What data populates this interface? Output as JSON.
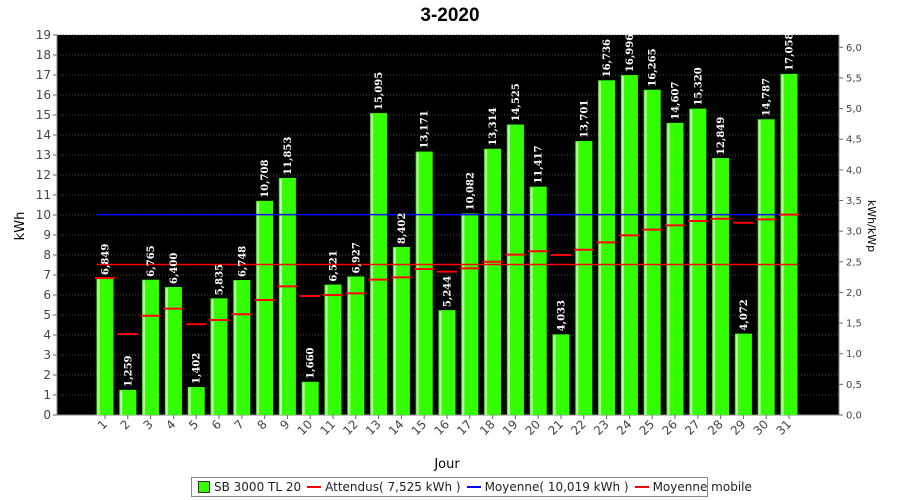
{
  "chart_data": {
    "type": "bar",
    "title": "3-2020",
    "xlabel": "Jour",
    "ylabel": "kWh",
    "y2label": "kWh/kWp",
    "ylim": [
      0,
      19
    ],
    "y2lim": [
      0,
      6.2
    ],
    "yticks": [
      "0",
      "1",
      "2",
      "3",
      "4",
      "5",
      "6",
      "7",
      "8",
      "9",
      "10",
      "11",
      "12",
      "13",
      "14",
      "15",
      "16",
      "17",
      "18",
      "19"
    ],
    "y2ticks": [
      "0,0",
      "0,5",
      "1,0",
      "1,5",
      "2,0",
      "2,5",
      "3,0",
      "3,5",
      "4,0",
      "4,5",
      "5,0",
      "5,5",
      "6,0"
    ],
    "categories": [
      "1",
      "2",
      "3",
      "4",
      "5",
      "6",
      "7",
      "8",
      "9",
      "10",
      "11",
      "12",
      "13",
      "14",
      "15",
      "16",
      "17",
      "18",
      "19",
      "20",
      "21",
      "22",
      "23",
      "24",
      "25",
      "26",
      "27",
      "28",
      "29",
      "30",
      "31"
    ],
    "series": [
      {
        "name": "SB 3000 TL 20",
        "type": "bar",
        "color": "#33ff00",
        "values": [
          6.849,
          1.259,
          6.765,
          6.4,
          1.402,
          5.835,
          6.748,
          10.708,
          11.853,
          1.66,
          6.521,
          6.927,
          15.095,
          8.402,
          13.171,
          5.244,
          10.082,
          13.314,
          14.525,
          11.417,
          4.033,
          13.701,
          16.736,
          16.996,
          16.265,
          14.607,
          15.32,
          12.849,
          4.072,
          14.787,
          17.058
        ],
        "labels": [
          "6,849",
          "1,259",
          "6,765",
          "6,400",
          "1,402",
          "5,835",
          "6,748",
          "10,708",
          "11,853",
          "1,660",
          "6,521",
          "6,927",
          "15,095",
          "8,402",
          "13,171",
          "5,244",
          "10,082",
          "13,314",
          "14,525",
          "11,417",
          "4,033",
          "13,701",
          "16,736",
          "16,996",
          "16,265",
          "14,607",
          "15,320",
          "12,849",
          "4,072",
          "14,787",
          "17,058"
        ]
      },
      {
        "name": "Attendus( 7,525 kWh )",
        "type": "line",
        "color": "#ff0000",
        "values": [
          7.525,
          7.525,
          7.525,
          7.525,
          7.525,
          7.525,
          7.525,
          7.525,
          7.525,
          7.525,
          7.525,
          7.525,
          7.525,
          7.525,
          7.525,
          7.525,
          7.525,
          7.525,
          7.525,
          7.525,
          7.525,
          7.525,
          7.525,
          7.525,
          7.525,
          7.525,
          7.525,
          7.525,
          7.525,
          7.525,
          7.525
        ]
      },
      {
        "name": "Moyenne( 10,019 kWh )",
        "type": "line",
        "color": "#0000ff",
        "values": [
          10.019,
          10.019,
          10.019,
          10.019,
          10.019,
          10.019,
          10.019,
          10.019,
          10.019,
          10.019,
          10.019,
          10.019,
          10.019,
          10.019,
          10.019,
          10.019,
          10.019,
          10.019,
          10.019,
          10.019,
          10.019,
          10.019,
          10.019,
          10.019,
          10.019,
          10.019,
          10.019,
          10.019,
          10.019,
          10.019,
          10.019
        ]
      },
      {
        "name": "Moyenne mobile",
        "type": "marker",
        "color": "#ff0000",
        "values": [
          6.85,
          4.05,
          4.96,
          5.32,
          4.54,
          4.75,
          5.04,
          5.75,
          6.43,
          5.95,
          6.0,
          6.08,
          6.77,
          6.88,
          7.3,
          7.17,
          7.33,
          7.66,
          8.02,
          8.19,
          8.0,
          8.26,
          8.63,
          8.98,
          9.27,
          9.48,
          9.7,
          9.81,
          9.61,
          9.78,
          10.02
        ]
      }
    ],
    "legend_position": "bottom"
  }
}
